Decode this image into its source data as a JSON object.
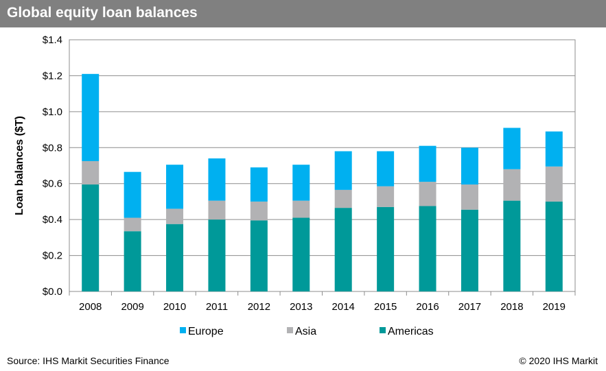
{
  "header": {
    "title": "Global equity loan balances"
  },
  "footer": {
    "source": "Source: IHS Markit Securities Finance",
    "copyright": "© 2020 IHS Markit"
  },
  "chart_data": {
    "type": "bar",
    "stacked": true,
    "title": "Global equity loan balances",
    "xlabel": "",
    "ylabel": "Loan balances ($T)",
    "ylim": [
      0,
      1.4
    ],
    "yticks": [
      "$0.0",
      "$0.2",
      "$0.4",
      "$0.6",
      "$0.8",
      "$1.0",
      "$1.2",
      "$1.4"
    ],
    "categories": [
      "2008",
      "2009",
      "2010",
      "2011",
      "2012",
      "2013",
      "2014",
      "2015",
      "2016",
      "2017",
      "2018",
      "2019"
    ],
    "series": [
      {
        "name": "Americas",
        "color": "#009999",
        "values": [
          0.595,
          0.335,
          0.375,
          0.4,
          0.395,
          0.41,
          0.465,
          0.47,
          0.475,
          0.455,
          0.505,
          0.5
        ]
      },
      {
        "name": "Asia",
        "color": "#b2b2b4",
        "values": [
          0.13,
          0.075,
          0.085,
          0.105,
          0.105,
          0.095,
          0.1,
          0.115,
          0.135,
          0.14,
          0.175,
          0.195
        ]
      },
      {
        "name": "Europe",
        "color": "#00b0f0",
        "values": [
          0.485,
          0.255,
          0.245,
          0.235,
          0.19,
          0.2,
          0.215,
          0.195,
          0.2,
          0.205,
          0.23,
          0.195
        ]
      }
    ],
    "legend_order": [
      "Europe",
      "Asia",
      "Americas"
    ],
    "legend_position": "bottom",
    "grid": true
  }
}
